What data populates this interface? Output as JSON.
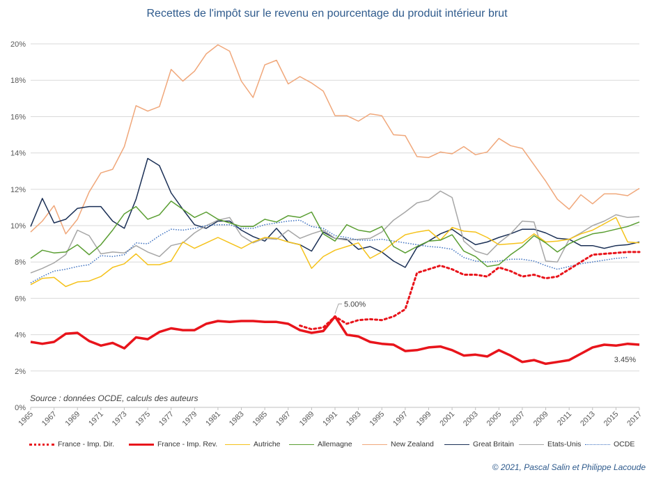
{
  "chart_data": {
    "type": "line",
    "title": "Recettes de l'impôt sur le revenu en pourcentage du produit intérieur brut",
    "x": [
      1965,
      1966,
      1967,
      1968,
      1969,
      1970,
      1971,
      1972,
      1973,
      1974,
      1975,
      1976,
      1977,
      1978,
      1979,
      1980,
      1981,
      1982,
      1983,
      1984,
      1985,
      1986,
      1987,
      1988,
      1989,
      1990,
      1991,
      1992,
      1993,
      1994,
      1995,
      1996,
      1997,
      1998,
      1999,
      2000,
      2001,
      2002,
      2003,
      2004,
      2005,
      2006,
      2007,
      2008,
      2009,
      2010,
      2011,
      2012,
      2013,
      2014,
      2015,
      2016,
      2017
    ],
    "x_tick_labels": [
      "1965",
      "1967",
      "1969",
      "1971",
      "1973",
      "1975",
      "1977",
      "1979",
      "1981",
      "1983",
      "1985",
      "1987",
      "1989",
      "1991",
      "1993",
      "1995",
      "1997",
      "1999",
      "2001",
      "2003",
      "2005",
      "2007",
      "2009",
      "2011",
      "2013",
      "2015",
      "2017"
    ],
    "y_tick_labels": [
      "0%",
      "2%",
      "4%",
      "6%",
      "8%",
      "10%",
      "12%",
      "14%",
      "16%",
      "18%",
      "20%"
    ],
    "ylim": [
      0,
      20.5
    ],
    "grid": true,
    "legend_position": "bottom",
    "series": [
      {
        "name": "France - Imp. Dir.",
        "color": "#e8141b",
        "dash": "dotted",
        "width": 3,
        "values": [
          null,
          null,
          null,
          null,
          null,
          null,
          null,
          null,
          null,
          null,
          null,
          null,
          null,
          null,
          null,
          null,
          null,
          null,
          null,
          null,
          null,
          null,
          null,
          4.5,
          4.3,
          4.4,
          5.0,
          4.6,
          4.8,
          4.85,
          4.8,
          5.0,
          5.4,
          7.4,
          7.6,
          7.8,
          7.6,
          7.3,
          7.3,
          7.2,
          7.7,
          7.5,
          7.2,
          7.3,
          7.1,
          7.2,
          7.6,
          8.0,
          8.4,
          8.45,
          8.5,
          8.55,
          8.55
        ]
      },
      {
        "name": "France - Imp. Rev.",
        "color": "#e8141b",
        "dash": "solid",
        "width": 3.5,
        "values": [
          3.6,
          3.5,
          3.6,
          4.05,
          4.1,
          3.65,
          3.4,
          3.55,
          3.25,
          3.85,
          3.75,
          4.15,
          4.35,
          4.25,
          4.25,
          4.6,
          4.75,
          4.7,
          4.75,
          4.75,
          4.7,
          4.7,
          4.6,
          4.25,
          4.1,
          4.2,
          5.0,
          4.0,
          3.9,
          3.6,
          3.5,
          3.45,
          3.1,
          3.15,
          3.3,
          3.35,
          3.15,
          2.85,
          2.9,
          2.8,
          3.15,
          2.85,
          2.5,
          2.6,
          2.4,
          2.5,
          2.6,
          2.95,
          3.3,
          3.45,
          3.4,
          3.5,
          3.45
        ]
      },
      {
        "name": "Autriche",
        "color": "#f5c21a",
        "dash": "solid",
        "width": 1.5,
        "values": [
          6.75,
          7.1,
          7.15,
          6.65,
          6.9,
          6.95,
          7.2,
          7.7,
          7.9,
          8.45,
          7.85,
          7.85,
          8.05,
          9.1,
          8.75,
          9.05,
          9.35,
          9.05,
          8.75,
          9.1,
          9.35,
          9.3,
          9.1,
          8.95,
          7.65,
          8.3,
          8.65,
          8.85,
          9.05,
          8.2,
          8.55,
          9.05,
          9.5,
          9.65,
          9.75,
          9.2,
          9.9,
          9.7,
          9.65,
          9.35,
          8.95,
          9.0,
          9.05,
          9.55,
          9.1,
          9.15,
          9.25,
          9.55,
          9.75,
          10.1,
          10.45,
          9.1,
          9.05
        ]
      },
      {
        "name": "Allemagne",
        "color": "#5a9e32",
        "dash": "solid",
        "width": 1.5,
        "values": [
          8.2,
          8.65,
          8.5,
          8.55,
          8.95,
          8.4,
          8.95,
          9.75,
          10.65,
          11.05,
          10.35,
          10.6,
          11.35,
          10.9,
          10.45,
          10.75,
          10.35,
          10.15,
          9.95,
          9.95,
          10.35,
          10.2,
          10.55,
          10.45,
          10.75,
          9.55,
          9.15,
          10.05,
          9.75,
          9.65,
          9.95,
          8.85,
          8.5,
          8.85,
          9.15,
          9.2,
          9.5,
          8.6,
          8.3,
          7.75,
          7.85,
          8.4,
          8.85,
          9.45,
          9.05,
          8.55,
          9.0,
          9.3,
          9.55,
          9.65,
          9.8,
          9.95,
          10.2
        ]
      },
      {
        "name": "New Zealand",
        "color": "#f0a77a",
        "dash": "solid",
        "width": 1.5,
        "values": [
          9.65,
          10.25,
          11.1,
          9.55,
          10.35,
          11.85,
          12.9,
          13.1,
          14.35,
          16.6,
          16.3,
          16.55,
          18.6,
          17.95,
          18.5,
          19.45,
          19.95,
          19.6,
          17.95,
          17.05,
          18.85,
          19.1,
          17.8,
          18.2,
          17.85,
          17.4,
          16.05,
          16.05,
          15.75,
          16.15,
          16.05,
          15.0,
          14.95,
          13.8,
          13.75,
          14.05,
          13.95,
          14.35,
          13.9,
          14.05,
          14.8,
          14.4,
          14.25,
          13.35,
          12.45,
          11.45,
          10.9,
          11.7,
          11.2,
          11.75,
          11.75,
          11.65,
          12.05
        ]
      },
      {
        "name": "Great Britain",
        "color": "#1a2f55",
        "dash": "solid",
        "width": 1.5,
        "values": [
          9.95,
          11.5,
          10.15,
          10.35,
          10.95,
          11.05,
          11.05,
          10.25,
          9.85,
          11.45,
          13.7,
          13.3,
          11.8,
          10.9,
          10.05,
          9.85,
          10.25,
          10.25,
          9.75,
          9.4,
          9.15,
          9.85,
          9.1,
          8.95,
          8.6,
          9.65,
          9.3,
          9.25,
          8.7,
          8.85,
          8.55,
          8.05,
          7.7,
          8.8,
          9.15,
          9.55,
          9.8,
          9.35,
          8.95,
          9.1,
          9.35,
          9.55,
          9.8,
          9.8,
          9.6,
          9.3,
          9.25,
          8.9,
          8.9,
          8.75,
          8.9,
          8.95,
          9.1
        ]
      },
      {
        "name": "Etats-Unis",
        "color": "#a6a6a6",
        "dash": "solid",
        "width": 1.5,
        "values": [
          7.4,
          7.65,
          7.95,
          8.4,
          9.75,
          9.45,
          8.45,
          8.55,
          8.5,
          8.9,
          8.55,
          8.3,
          8.9,
          9.05,
          9.6,
          10.0,
          10.3,
          10.45,
          9.45,
          9.05,
          9.3,
          9.25,
          9.75,
          9.3,
          9.55,
          9.75,
          9.3,
          9.2,
          9.25,
          9.3,
          9.65,
          10.3,
          10.75,
          11.25,
          11.4,
          11.9,
          11.55,
          9.15,
          8.6,
          8.4,
          9.05,
          9.55,
          10.25,
          10.2,
          8.05,
          8.0,
          9.25,
          9.6,
          10.0,
          10.25,
          10.6,
          10.45,
          10.5
        ]
      },
      {
        "name": "OCDE",
        "color": "#3a6fbf",
        "dash": "dotted",
        "width": 1.5,
        "values": [
          6.85,
          7.2,
          7.5,
          7.6,
          7.75,
          7.85,
          8.35,
          8.3,
          8.4,
          9.05,
          9.0,
          9.45,
          9.8,
          9.75,
          9.85,
          10.0,
          10.05,
          10.05,
          9.85,
          9.85,
          10.05,
          10.15,
          10.25,
          10.3,
          9.95,
          9.85,
          9.45,
          9.35,
          9.2,
          9.2,
          9.25,
          9.15,
          9.05,
          8.95,
          8.85,
          8.8,
          8.7,
          8.25,
          8.05,
          8.0,
          8.05,
          8.15,
          8.15,
          8.05,
          7.8,
          7.6,
          7.75,
          7.9,
          8.0,
          8.1,
          8.2,
          8.25,
          null
        ]
      }
    ],
    "annotations": [
      {
        "text": "5.00%",
        "x": 1991,
        "y": 5.0
      },
      {
        "text": "3.45%",
        "x": 2017,
        "y": 3.45
      }
    ],
    "source": "Source : données OCDE, calculs des auteurs"
  },
  "copyright": "© 2021, Pascal Salin et Philippe Lacoude"
}
